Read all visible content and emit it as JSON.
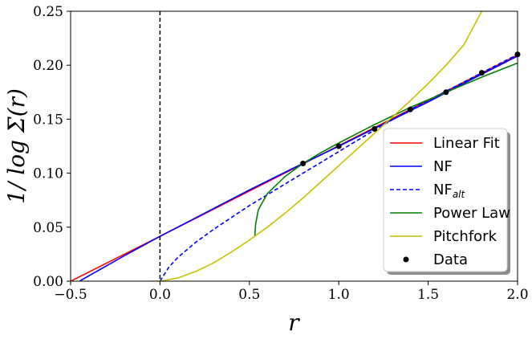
{
  "chart_data": {
    "type": "line",
    "xlabel": "r",
    "ylabel": "1/ log Σ(r)",
    "xlim": [
      -0.5,
      2.0
    ],
    "ylim": [
      0.0,
      0.25
    ],
    "x_ticks": [
      -0.5,
      0.0,
      0.5,
      1.0,
      1.5,
      2.0
    ],
    "x_tick_labels": [
      "−0.5",
      "0.0",
      "0.5",
      "1.0",
      "1.5",
      "2.0"
    ],
    "y_ticks": [
      0.0,
      0.05,
      0.1,
      0.15,
      0.2,
      0.25
    ],
    "y_tick_labels": [
      "0.00",
      "0.05",
      "0.10",
      "0.15",
      "0.20",
      "0.25"
    ],
    "grid": false,
    "legend_position": "lower-right",
    "vline": {
      "x": 0.0,
      "style": "dashed",
      "color": "#000000"
    },
    "series": [
      {
        "name": "Linear Fit",
        "color": "#ff0000",
        "style": "solid",
        "x": [
          -0.5,
          0.0,
          0.5,
          1.0,
          1.5,
          2.0
        ],
        "y": [
          0.0,
          0.0415,
          0.0835,
          0.1255,
          0.1675,
          0.2095
        ]
      },
      {
        "name": "NF",
        "color": "#0000ff",
        "style": "solid",
        "x": [
          -0.45,
          -0.2,
          0.0,
          0.25,
          0.5,
          0.75,
          1.0,
          1.25,
          1.5,
          1.75,
          2.0
        ],
        "y": [
          0.0,
          0.0235,
          0.0415,
          0.063,
          0.0845,
          0.105,
          0.125,
          0.1455,
          0.166,
          0.1875,
          0.2085
        ]
      },
      {
        "name": "NF",
        "sub": "alt",
        "color": "#0000ff",
        "style": "dashed",
        "x": [
          0.0,
          0.05,
          0.1,
          0.2,
          0.3,
          0.4,
          0.5,
          0.6,
          0.7,
          0.8,
          0.9,
          1.0,
          1.2,
          1.4,
          1.6,
          1.8,
          2.0
        ],
        "y": [
          0.0,
          0.013,
          0.022,
          0.036,
          0.048,
          0.059,
          0.07,
          0.08,
          0.09,
          0.1,
          0.11,
          0.12,
          0.14,
          0.159,
          0.176,
          0.193,
          0.21
        ]
      },
      {
        "name": "Power Law",
        "color": "#008000",
        "style": "solid",
        "x": [
          0.53,
          0.535,
          0.55,
          0.6,
          0.7,
          0.8,
          0.9,
          1.0,
          1.2,
          1.4,
          1.6,
          1.8,
          2.0
        ],
        "y": [
          0.042,
          0.053,
          0.066,
          0.081,
          0.097,
          0.109,
          0.119,
          0.128,
          0.145,
          0.161,
          0.175,
          0.189,
          0.202
        ]
      },
      {
        "name": "Pitchfork",
        "color": "#c8c000",
        "style": "solid",
        "x": [
          -0.05,
          0.0,
          0.1,
          0.2,
          0.3,
          0.4,
          0.5,
          0.6,
          0.7,
          0.8,
          0.9,
          1.0,
          1.1,
          1.2,
          1.3,
          1.4,
          1.5,
          1.6,
          1.7,
          1.8
        ],
        "y": [
          0.0,
          0.0,
          0.003,
          0.009,
          0.017,
          0.027,
          0.038,
          0.05,
          0.063,
          0.077,
          0.092,
          0.107,
          0.122,
          0.137,
          0.152,
          0.167,
          0.183,
          0.2,
          0.219,
          0.25
        ]
      }
    ],
    "points": {
      "name": "Data",
      "color": "#000000",
      "x": [
        0.8,
        1.0,
        1.2,
        1.4,
        1.6,
        1.8,
        2.0
      ],
      "y": [
        0.109,
        0.125,
        0.141,
        0.159,
        0.175,
        0.193,
        0.21
      ]
    }
  }
}
